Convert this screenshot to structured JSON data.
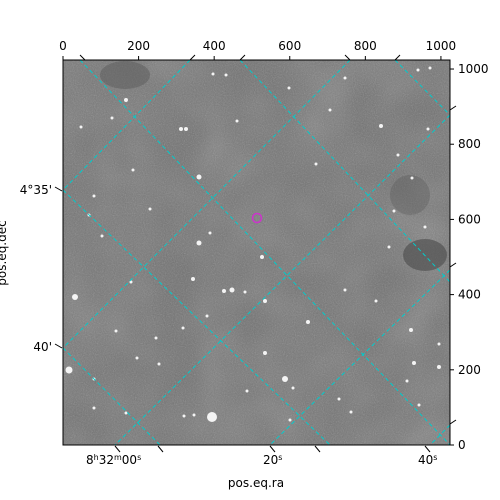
{
  "chart_data": {
    "type": "image",
    "xlabel": "pos.eq.ra",
    "ylabel": "pos.eq.dec",
    "pixel_axes": {
      "x": {
        "range": [
          0,
          1024
        ],
        "ticks": [
          0,
          200,
          400,
          600,
          800,
          1000
        ],
        "tick_labels": [
          "0",
          "200",
          "400",
          "600",
          "800",
          "1000"
        ]
      },
      "y": {
        "range": [
          0,
          1024
        ],
        "ticks": [
          0,
          200,
          400,
          600,
          800,
          1000
        ],
        "tick_labels": [
          "0",
          "200",
          "400",
          "600",
          "800",
          "1000"
        ]
      }
    },
    "world_axes": {
      "ra_tick_labels": [
        {
          "text": "8h32m00s",
          "h": "8",
          "hu": "h",
          "m": "32",
          "mu": "m",
          "s": "00",
          "su": "s"
        },
        {
          "text": "20s",
          "s": "20",
          "su": "s"
        },
        {
          "text": "40s",
          "s": "40",
          "su": "s"
        }
      ],
      "dec_tick_labels": [
        "4°35'",
        "40'"
      ]
    },
    "grid": true,
    "grid_color": "#00cccc",
    "marker": {
      "shape": "circle",
      "color": "#cc33cc",
      "pixel": [
        518,
        601
      ]
    },
    "image": {
      "colormap": "gray",
      "content": "star field"
    }
  }
}
